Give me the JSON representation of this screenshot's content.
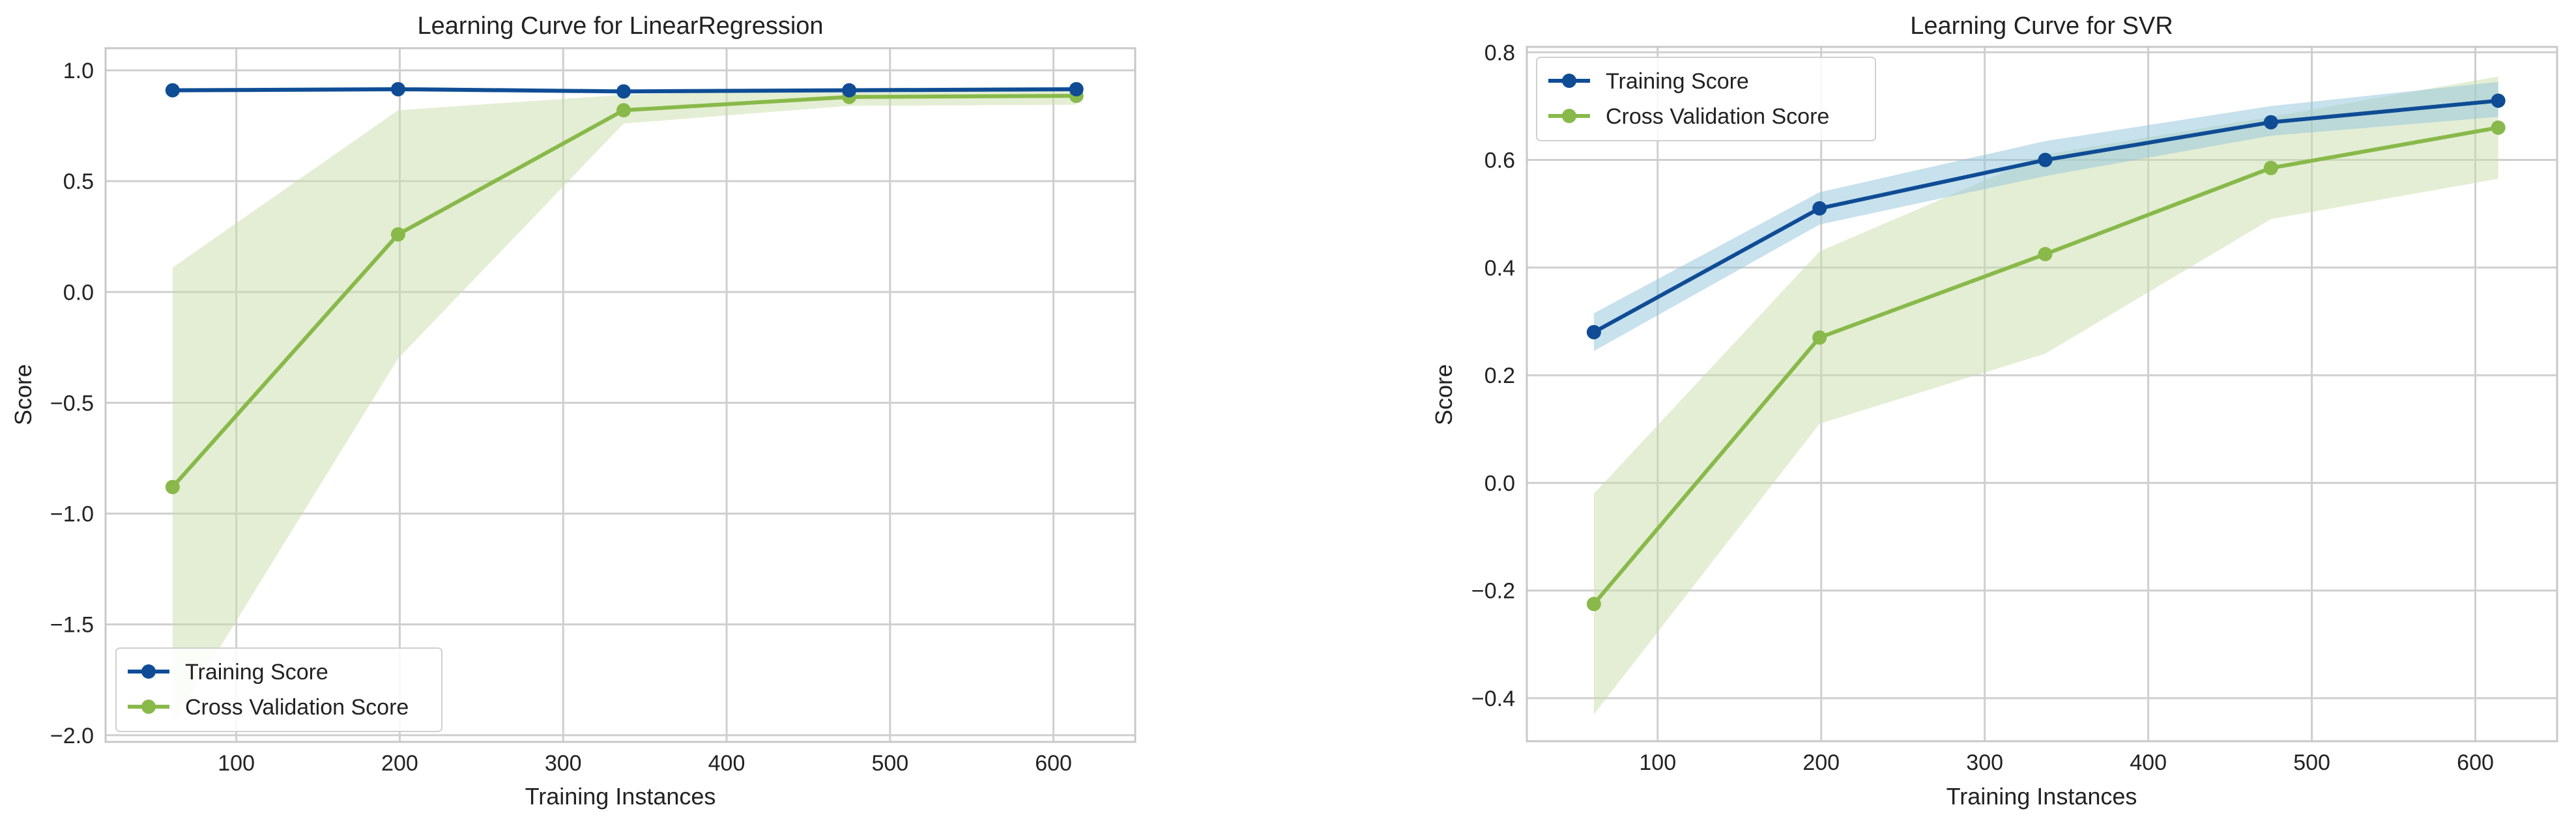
{
  "colors": {
    "training": "#0f4c95",
    "training_band": "#8fc3dc",
    "cv": "#88b94a",
    "cv_band": "#c9deaa"
  },
  "chart_data": [
    {
      "type": "line",
      "title": "Learning Curve for LinearRegression",
      "xlabel": "Training Instances",
      "ylabel": "Score",
      "xlim": [
        20,
        650
      ],
      "ylim": [
        -2.03,
        1.1
      ],
      "xticks": [
        100,
        200,
        300,
        400,
        500,
        600
      ],
      "yticks": [
        -2.0,
        -1.5,
        -1.0,
        -0.5,
        0.0,
        0.5,
        1.0
      ],
      "xtick_labels": [
        "100",
        "200",
        "300",
        "400",
        "500",
        "600"
      ],
      "ytick_labels": [
        "−2.0",
        "−1.5",
        "−1.0",
        "−0.5",
        "0.0",
        "0.5",
        "1.0"
      ],
      "grid": true,
      "legend_position": "bottom-left",
      "x": [
        61,
        199,
        337,
        475,
        614
      ],
      "series": [
        {
          "name": "Training Score",
          "color_key": "training",
          "values": [
            0.91,
            0.915,
            0.905,
            0.91,
            0.915
          ],
          "lower": [
            0.9,
            0.905,
            0.895,
            0.9,
            0.905
          ],
          "upper": [
            0.92,
            0.925,
            0.915,
            0.92,
            0.925
          ]
        },
        {
          "name": "Cross Validation Score",
          "color_key": "cv",
          "values": [
            -0.88,
            0.26,
            0.82,
            0.88,
            0.885
          ],
          "lower": [
            -1.95,
            -0.3,
            0.76,
            0.84,
            0.845
          ],
          "upper": [
            0.11,
            0.82,
            0.89,
            0.92,
            0.925
          ]
        }
      ]
    },
    {
      "type": "line",
      "title": "Learning Curve for SVR",
      "xlabel": "Training Instances",
      "ylabel": "Score",
      "xlim": [
        20,
        650
      ],
      "ylim": [
        -0.48,
        0.81
      ],
      "xticks": [
        100,
        200,
        300,
        400,
        500,
        600
      ],
      "yticks": [
        -0.4,
        -0.2,
        0.0,
        0.2,
        0.4,
        0.6,
        0.8
      ],
      "xtick_labels": [
        "100",
        "200",
        "300",
        "400",
        "500",
        "600"
      ],
      "ytick_labels": [
        "−0.4",
        "−0.2",
        "0.0",
        "0.2",
        "0.4",
        "0.6",
        "0.8"
      ],
      "grid": true,
      "legend_position": "top-left",
      "x": [
        61,
        199,
        337,
        475,
        614
      ],
      "series": [
        {
          "name": "Training Score",
          "color_key": "training",
          "values": [
            0.28,
            0.51,
            0.6,
            0.67,
            0.71
          ],
          "lower": [
            0.245,
            0.48,
            0.57,
            0.645,
            0.68
          ],
          "upper": [
            0.315,
            0.54,
            0.635,
            0.7,
            0.745
          ]
        },
        {
          "name": "Cross Validation Score",
          "color_key": "cv",
          "values": [
            -0.225,
            0.27,
            0.425,
            0.585,
            0.66
          ],
          "lower": [
            -0.43,
            0.11,
            0.24,
            0.49,
            0.565
          ],
          "upper": [
            -0.02,
            0.43,
            0.61,
            0.68,
            0.755
          ]
        }
      ]
    }
  ]
}
